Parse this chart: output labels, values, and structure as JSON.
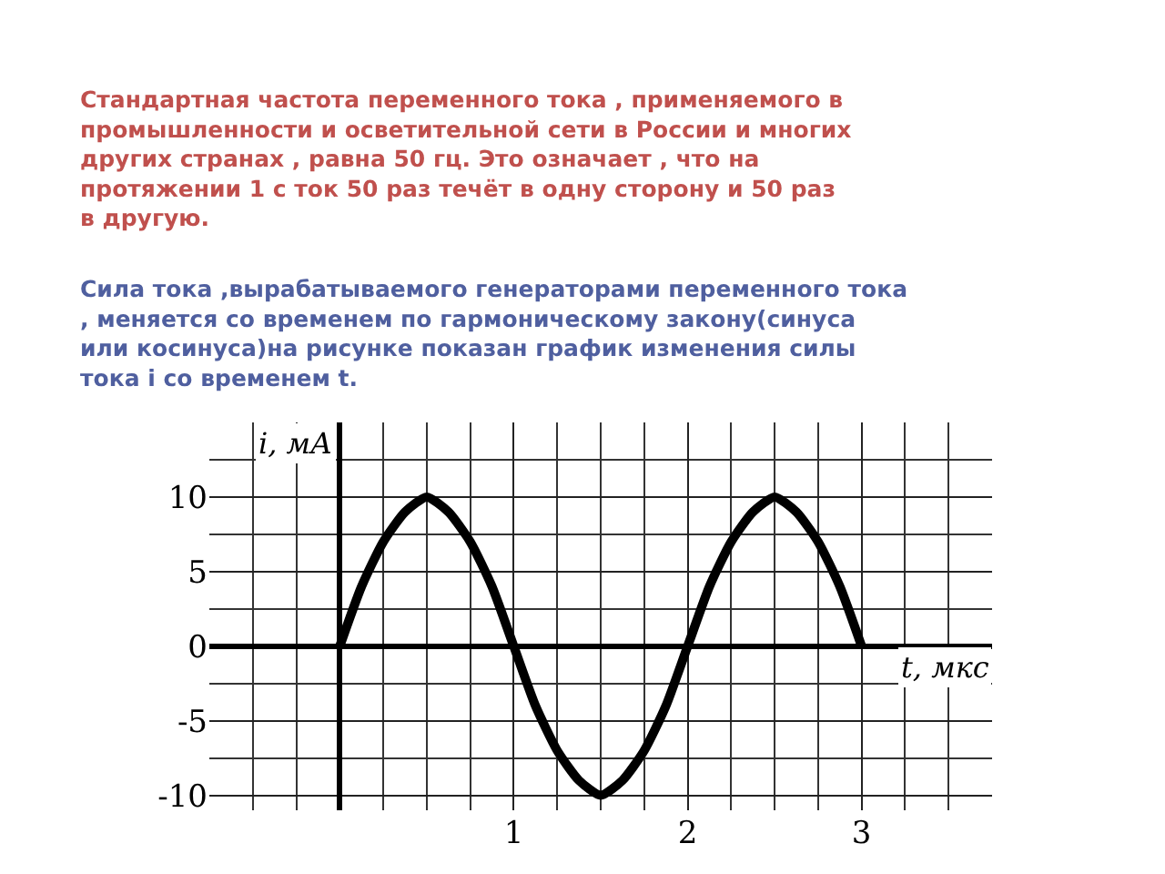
{
  "chart_data": {
    "type": "line",
    "title": "Стандартная частота переменного тока , применяемого в промышленности и осветительной сети в России и многих других странах , равна 50 гц. Это означает , что на протяжении 1 с ток 50 раз течёт в одну сторону и 50 раз в другую.",
    "subtitle": "Сила тока ,вырабатываемого генераторами переменного тока , меняется со временем по гармоническому закону(синуса или косинуса)на рисунке показан график изменения силы тока i со временем t.",
    "xlabel": "t, мкс",
    "ylabel": "i, мА",
    "x": [
      0,
      0.125,
      0.25,
      0.375,
      0.5,
      0.625,
      0.75,
      0.875,
      1,
      1.125,
      1.25,
      1.375,
      1.5,
      1.625,
      1.75,
      1.875,
      2,
      2.125,
      2.25,
      2.375,
      2.5,
      2.625,
      2.75,
      2.875,
      3
    ],
    "series": [
      {
        "color": "#000000",
        "values": [
          0,
          4,
          7,
          9,
          10,
          9,
          7,
          4,
          0,
          -4,
          -7,
          -9,
          -10,
          -9,
          -7,
          -4,
          0,
          4,
          7,
          9,
          10,
          9,
          7,
          4,
          0
        ]
      }
    ],
    "xlim": [
      -0.75,
      3.75
    ],
    "ylim": [
      -11,
      15
    ],
    "xticks": [
      {
        "value": 0,
        "label": null
      },
      1,
      2,
      3
    ],
    "yticks": [
      -10,
      -5,
      0,
      5,
      10
    ],
    "grid": true,
    "marker": "none",
    "line_style": "solid"
  }
}
